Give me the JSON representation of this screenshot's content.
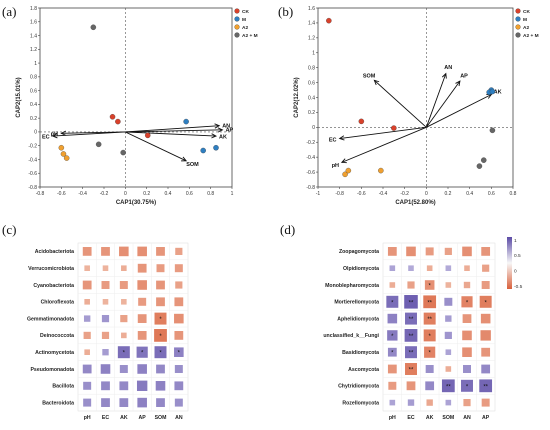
{
  "panel_labels": [
    "(a)",
    "(b)",
    "(c)",
    "(d)"
  ],
  "chart_data": [
    {
      "type": "scatter",
      "panel": "(a)",
      "xlabel": "CAP1(30.75%)",
      "ylabel": "CAP2(15.01%)",
      "xlim": [
        -0.8,
        1
      ],
      "ylim": [
        -0.8,
        1.8
      ],
      "xticks": [
        -0.8,
        -0.6,
        -0.4,
        -0.2,
        0,
        0.2,
        0.4,
        0.6,
        0.8,
        1
      ],
      "yticks": [
        -0.8,
        -0.6,
        -0.4,
        -0.2,
        0,
        0.2,
        0.4,
        0.6,
        0.8,
        1,
        1.2,
        1.4,
        1.6,
        1.8
      ],
      "legend": [
        {
          "name": "CK",
          "color": "#d9412b"
        },
        {
          "name": "M",
          "color": "#2f7fc1"
        },
        {
          "name": "A2",
          "color": "#f0a030"
        },
        {
          "name": "A2 + M",
          "color": "#666666"
        }
      ],
      "legend_position": "top-right",
      "points": [
        {
          "group": "A2 + M",
          "x": -0.3,
          "y": 1.52
        },
        {
          "group": "A2 + M",
          "x": -0.25,
          "y": -0.18
        },
        {
          "group": "A2 + M",
          "x": -0.02,
          "y": -0.3
        },
        {
          "group": "CK",
          "x": -0.12,
          "y": 0.22
        },
        {
          "group": "CK",
          "x": -0.07,
          "y": 0.15
        },
        {
          "group": "CK",
          "x": 0.21,
          "y": -0.05
        },
        {
          "group": "M",
          "x": 0.57,
          "y": 0.15
        },
        {
          "group": "M",
          "x": 0.73,
          "y": -0.27
        },
        {
          "group": "M",
          "x": 0.85,
          "y": -0.23
        },
        {
          "group": "A2",
          "x": -0.6,
          "y": -0.23
        },
        {
          "group": "A2",
          "x": -0.58,
          "y": -0.32
        },
        {
          "group": "A2",
          "x": -0.55,
          "y": -0.38
        }
      ],
      "vectors": [
        {
          "label": "AN",
          "x": 0.88,
          "y": 0.09
        },
        {
          "label": "AP",
          "x": 0.91,
          "y": 0.03
        },
        {
          "label": "AK",
          "x": 0.85,
          "y": -0.06
        },
        {
          "label": "SOM",
          "x": 0.57,
          "y": -0.42
        },
        {
          "label": "pH",
          "x": -0.6,
          "y": -0.02
        },
        {
          "label": "EC",
          "x": -0.68,
          "y": -0.06
        }
      ]
    },
    {
      "type": "scatter",
      "panel": "(b)",
      "xlabel": "CAP1(52.80%)",
      "ylabel": "CAP2(12.02%)",
      "xlim": [
        -1,
        0.8
      ],
      "ylim": [
        -0.8,
        1.6
      ],
      "xticks": [
        -1,
        -0.8,
        -0.6,
        -0.4,
        -0.2,
        0,
        0.2,
        0.4,
        0.6,
        0.8
      ],
      "yticks": [
        -0.8,
        -0.6,
        -0.4,
        -0.2,
        0,
        0.2,
        0.4,
        0.6,
        0.8,
        1,
        1.2,
        1.4,
        1.6
      ],
      "legend": [
        {
          "name": "CK",
          "color": "#d9412b"
        },
        {
          "name": "M",
          "color": "#2f7fc1"
        },
        {
          "name": "A2",
          "color": "#f0a030"
        },
        {
          "name": "A2 + M",
          "color": "#666666"
        }
      ],
      "legend_position": "top-right",
      "points": [
        {
          "group": "CK",
          "x": -0.9,
          "y": 1.43
        },
        {
          "group": "CK",
          "x": -0.6,
          "y": 0.08
        },
        {
          "group": "CK",
          "x": -0.3,
          "y": -0.01
        },
        {
          "group": "M",
          "x": 0.6,
          "y": 0.5
        },
        {
          "group": "M",
          "x": 0.58,
          "y": 0.47
        },
        {
          "group": "M",
          "x": 0.61,
          "y": 0.48
        },
        {
          "group": "A2",
          "x": -0.75,
          "y": -0.63
        },
        {
          "group": "A2",
          "x": -0.72,
          "y": -0.58
        },
        {
          "group": "A2",
          "x": -0.42,
          "y": -0.58
        },
        {
          "group": "A2 + M",
          "x": 0.61,
          "y": -0.04
        },
        {
          "group": "A2 + M",
          "x": 0.53,
          "y": -0.44
        },
        {
          "group": "A2 + M",
          "x": 0.49,
          "y": -0.52
        }
      ],
      "vectors": [
        {
          "label": "SOM",
          "x": -0.48,
          "y": 0.63
        },
        {
          "label": "AN",
          "x": 0.18,
          "y": 0.72
        },
        {
          "label": "AP",
          "x": 0.31,
          "y": 0.62
        },
        {
          "label": "AK",
          "x": 0.6,
          "y": 0.44
        },
        {
          "label": "EC",
          "x": -0.8,
          "y": -0.15
        },
        {
          "label": "pH",
          "x": -0.78,
          "y": -0.47
        }
      ]
    },
    {
      "type": "heatmap",
      "panel": "(c)",
      "rows": [
        "Acidobacteriota",
        "Verrucomicrobiota",
        "Cyanobacteriota",
        "Chloroflexota",
        "Gemmatimonadota",
        "Deinococcota",
        "Actinomycetota",
        "Pseudomonadota",
        "Bacillota",
        "Bacteroidota"
      ],
      "columns": [
        "pH",
        "EC",
        "AK",
        "AP",
        "SOM",
        "AN"
      ],
      "values": [
        [
          0.55,
          0.55,
          0.6,
          0.6,
          0.55,
          0.45
        ],
        [
          0.3,
          0.3,
          0.35,
          0.55,
          0.5,
          0.5
        ],
        [
          0.55,
          0.5,
          0.5,
          0.6,
          0.55,
          0.45
        ],
        [
          0.35,
          0.3,
          0.3,
          0.5,
          0.55,
          0.55
        ],
        [
          -0.4,
          -0.45,
          0.45,
          0.55,
          0.75,
          0.6
        ],
        [
          0.45,
          0.45,
          0.35,
          0.55,
          0.8,
          0.55
        ],
        [
          0.35,
          -0.4,
          -0.75,
          -0.7,
          -0.75,
          -0.6
        ],
        [
          -0.55,
          -0.6,
          -0.5,
          -0.6,
          -0.55,
          -0.5
        ],
        [
          -0.5,
          -0.55,
          -0.55,
          -0.65,
          -0.6,
          -0.55
        ],
        [
          -0.5,
          -0.55,
          -0.55,
          -0.6,
          -0.55,
          -0.5
        ]
      ],
      "significance": [
        [
          "",
          "",
          "",
          "",
          "",
          ""
        ],
        [
          "",
          "",
          "",
          "",
          "",
          ""
        ],
        [
          "",
          "",
          "",
          "",
          "",
          ""
        ],
        [
          "",
          "",
          "",
          "",
          "",
          ""
        ],
        [
          "",
          "",
          "",
          "",
          "*",
          ""
        ],
        [
          "",
          "",
          "",
          "",
          "*",
          ""
        ],
        [
          "",
          "",
          "*",
          "*",
          "*",
          "*"
        ],
        [
          "",
          "",
          "",
          "",
          "",
          ""
        ],
        [
          "",
          "",
          "",
          "",
          "",
          ""
        ],
        [
          "",
          "",
          "",
          "",
          "",
          ""
        ]
      ],
      "colorscale": {
        "negative": "#5b4ba6",
        "positive": "#d9603b"
      }
    },
    {
      "type": "heatmap",
      "panel": "(d)",
      "rows": [
        "Zoopagomycota",
        "Olpidiomycota",
        "Monoblepharomycota",
        "Mortierellomycota",
        "Aphelidiomycota",
        "unclassified_k__Fungi",
        "Basidiomycota",
        "Ascomycota",
        "Chytridiomycota",
        "Rozellomycota"
      ],
      "columns": [
        "pH",
        "EC",
        "AK",
        "SOM",
        "AN",
        "AP"
      ],
      "values": [
        [
          0.55,
          0.6,
          0.5,
          0.45,
          0.6,
          0.55
        ],
        [
          -0.35,
          -0.3,
          0.35,
          -0.3,
          0.35,
          0.45
        ],
        [
          0.35,
          0.45,
          0.6,
          0.3,
          0.4,
          0.5
        ],
        [
          -0.75,
          -0.85,
          0.8,
          -0.5,
          0.7,
          0.75
        ],
        [
          -0.6,
          -0.75,
          0.75,
          -0.4,
          0.55,
          0.6
        ],
        [
          -0.65,
          -0.8,
          0.75,
          -0.45,
          0.6,
          0.65
        ],
        [
          -0.55,
          -0.75,
          0.7,
          -0.35,
          0.6,
          0.55
        ],
        [
          0.55,
          0.75,
          -0.5,
          0.35,
          -0.5,
          -0.55
        ],
        [
          0.5,
          0.55,
          -0.55,
          -0.8,
          -0.75,
          -0.8
        ],
        [
          -0.35,
          -0.4,
          0.4,
          -0.35,
          0.45,
          0.5
        ]
      ],
      "significance": [
        [
          "",
          "",
          "",
          "",
          "",
          ""
        ],
        [
          "",
          "",
          "",
          "",
          "",
          ""
        ],
        [
          "",
          "",
          "*",
          "",
          "",
          ""
        ],
        [
          "*",
          "**",
          "**",
          "",
          "*",
          "*"
        ],
        [
          "",
          "**",
          "**",
          "",
          "",
          ""
        ],
        [
          "*",
          "**",
          "*",
          "",
          "",
          ""
        ],
        [
          "*",
          "**",
          "*",
          "",
          "",
          ""
        ],
        [
          "",
          "**",
          "",
          "",
          "",
          ""
        ],
        [
          "",
          "",
          "",
          "**",
          "*",
          "**"
        ],
        [
          "",
          "",
          "",
          "",
          "",
          ""
        ]
      ],
      "colorbar_ticks": [
        "1",
        "0.5",
        "0",
        "-0.5"
      ],
      "colorscale": {
        "negative": "#5b4ba6",
        "positive": "#d9603b"
      }
    }
  ]
}
